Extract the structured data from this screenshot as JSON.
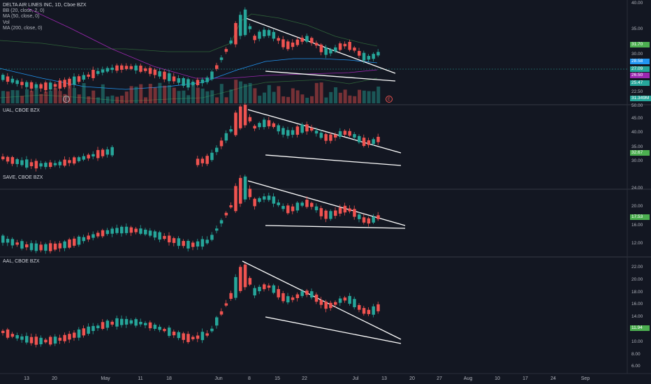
{
  "panes": [
    {
      "id": "dal",
      "legend": [
        "DELTA AIR LINES INC, 1D, Cboe BZX",
        "BB (20, close, 2, 0)",
        "MA (50, close, 0)",
        "Vol",
        "MA (200, close, 0)"
      ],
      "ticks": [
        "40.00",
        "35.00",
        "30.00",
        "22.50"
      ],
      "tags": [
        {
          "text": "31.70",
          "color": "#4caf50"
        },
        {
          "text": "28.58",
          "color": "#2196f3"
        },
        {
          "text": "27.09",
          "color": "#26a69a"
        },
        {
          "text": "26.50",
          "color": "#9c27b0"
        },
        {
          "text": "25.47",
          "color": "#26a69a"
        },
        {
          "text": "31.349M",
          "color": "#26a69a"
        }
      ]
    },
    {
      "id": "ual",
      "legend": [
        "UAL, CBOE BZX"
      ],
      "ticks": [
        "50.00",
        "45.00",
        "40.00",
        "35.00",
        "30.00"
      ],
      "tags": [
        {
          "text": "32.67",
          "color": "#4caf50"
        }
      ]
    },
    {
      "id": "save",
      "legend": [
        "SAVE, CBOE BZX"
      ],
      "ticks": [
        "24.00",
        "20.00",
        "16.00",
        "12.00"
      ],
      "tags": [
        {
          "text": "17.53",
          "color": "#4caf50"
        }
      ]
    },
    {
      "id": "aal",
      "legend": [
        "AAL, CBOE BZX"
      ],
      "ticks": [
        "22.00",
        "20.00",
        "18.00",
        "16.00",
        "14.00",
        "10.00",
        "8.00",
        "6.00"
      ],
      "tags": [
        {
          "text": "11.94",
          "color": "#4caf50"
        }
      ]
    }
  ],
  "time_axis": [
    "13",
    "20",
    "May",
    "11",
    "18",
    "Jun",
    "8",
    "15",
    "22",
    "Jul",
    "13",
    "20",
    "27",
    "Aug",
    "10",
    "17",
    "24",
    "Sep"
  ],
  "earnings_markers": [
    "E",
    "E"
  ],
  "colors": {
    "up": "#26a69a",
    "down": "#ef5350",
    "trendline": "#ffffff",
    "bg": "#131722",
    "grid": "#2a2e39"
  }
}
